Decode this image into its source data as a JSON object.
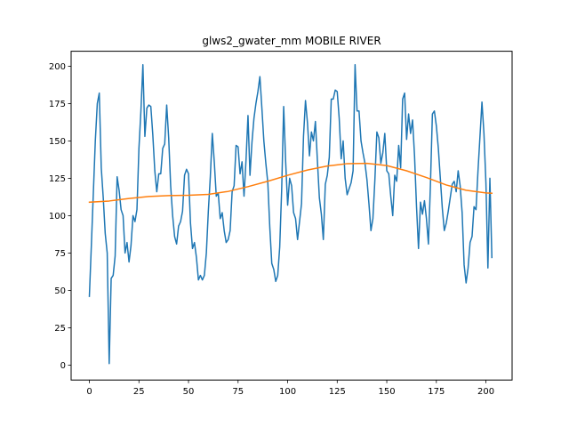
{
  "chart_data": {
    "type": "line",
    "title": "glws2_gwater_mm MOBILE RIVER",
    "xlabel": "",
    "ylabel": "",
    "xlim": [
      -9.2,
      213.2
    ],
    "ylim": [
      -10,
      210
    ],
    "xticks": [
      0,
      25,
      50,
      75,
      100,
      125,
      150,
      175,
      200
    ],
    "yticks": [
      0,
      25,
      50,
      75,
      100,
      125,
      150,
      175,
      200
    ],
    "grid": false,
    "colors": {
      "series_raw": "#1f77b4",
      "series_smooth": "#ff7f0e"
    },
    "series": [
      {
        "values": [
          46,
          80,
          115,
          150,
          175,
          182,
          132,
          112,
          88,
          75,
          1,
          58,
          60,
          73,
          126,
          117,
          104,
          100,
          75,
          82,
          69,
          80,
          100,
          96,
          104,
          145,
          170,
          201,
          153,
          172,
          174,
          173,
          154,
          130,
          116,
          128,
          128,
          145,
          148,
          174,
          152,
          120,
          100,
          86,
          81,
          93,
          96,
          103,
          127,
          131,
          128,
          95,
          78,
          82,
          72,
          57,
          60,
          57,
          60,
          75,
          103,
          126,
          155,
          136,
          113,
          115,
          98,
          102,
          90,
          82,
          84,
          90,
          116,
          120,
          147,
          146,
          128,
          136,
          113,
          137,
          167,
          127,
          149,
          165,
          175,
          183,
          193,
          172,
          150,
          135,
          122,
          92,
          68,
          64,
          56,
          60,
          79,
          118,
          173,
          136,
          107,
          125,
          120,
          102,
          98,
          84,
          96,
          108,
          153,
          177,
          162,
          140,
          156,
          150,
          163,
          137,
          112,
          101,
          84,
          121,
          127,
          139,
          178,
          178,
          184,
          183,
          165,
          138,
          150,
          125,
          114,
          118,
          122,
          130,
          201,
          170,
          170,
          150,
          142,
          135,
          124,
          108,
          90,
          98,
          124,
          156,
          152,
          135,
          142,
          155,
          130,
          128,
          113,
          100,
          127,
          123,
          147,
          132,
          178,
          182,
          151,
          168,
          155,
          164,
          140,
          106,
          78,
          109,
          101,
          110,
          98,
          81,
          120,
          168,
          170,
          160,
          145,
          125,
          105,
          90,
          95,
          103,
          112,
          121,
          123,
          116,
          130,
          120,
          102,
          67,
          55,
          65,
          82,
          86,
          106,
          104,
          130,
          153,
          176,
          155,
          122,
          65,
          125,
          72
        ]
      },
      {
        "x": [
          0,
          10,
          20,
          30,
          40,
          50,
          60,
          70,
          80,
          90,
          100,
          110,
          120,
          130,
          140,
          150,
          160,
          170,
          180,
          190,
          200,
          203
        ],
        "values": [
          109,
          109.8,
          111.5,
          112.8,
          113.4,
          113.6,
          114.2,
          116.2,
          119.4,
          123.0,
          127.0,
          130.5,
          133.2,
          134.8,
          135.0,
          133.5,
          130.0,
          125.5,
          120.5,
          117.0,
          115.2,
          115.0
        ]
      }
    ]
  }
}
